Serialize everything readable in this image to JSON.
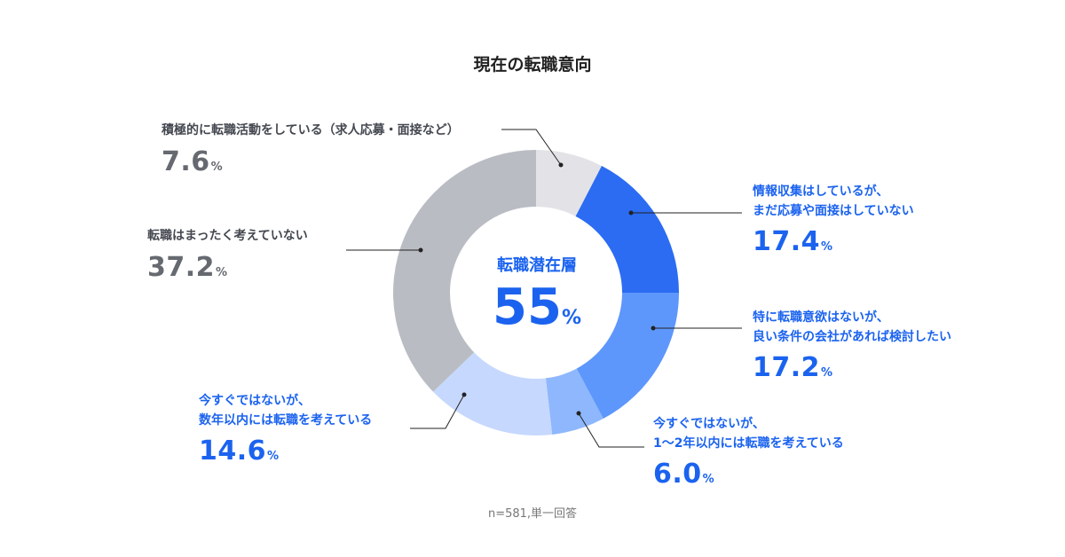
{
  "chart_data": {
    "type": "pie",
    "title": "現在の転職意向",
    "note": "n=581,単一回答",
    "center_label": "転職潜在層",
    "center_value": "55",
    "unit": "%",
    "slices": [
      {
        "lines": [
          "積極的に転職活動をしている（求人応募・面接など）"
        ],
        "value": 7.6,
        "value_label": "7.6",
        "color": "#e3e3e7"
      },
      {
        "lines": [
          "情報収集はしているが、",
          "まだ応募や面接はしていない"
        ],
        "value": 17.4,
        "value_label": "17.4",
        "color": "#2b6cf2"
      },
      {
        "lines": [
          "特に転職意欲はないが、",
          "良い条件の会社があれば検討したい"
        ],
        "value": 17.2,
        "value_label": "17.2",
        "color": "#5e97fb"
      },
      {
        "lines": [
          "今すぐではないが、",
          "1〜2年以内には転職を考えている"
        ],
        "value": 6.0,
        "value_label": "6.0",
        "color": "#8eb7fd"
      },
      {
        "lines": [
          "今すぐではないが、",
          "数年以内には転職を考えている"
        ],
        "value": 14.6,
        "value_label": "14.6",
        "color": "#c6d8fd"
      },
      {
        "lines": [
          "転職はまったく考えていない"
        ],
        "value": 37.2,
        "value_label": "37.2",
        "color": "#b9bcc3"
      }
    ]
  }
}
